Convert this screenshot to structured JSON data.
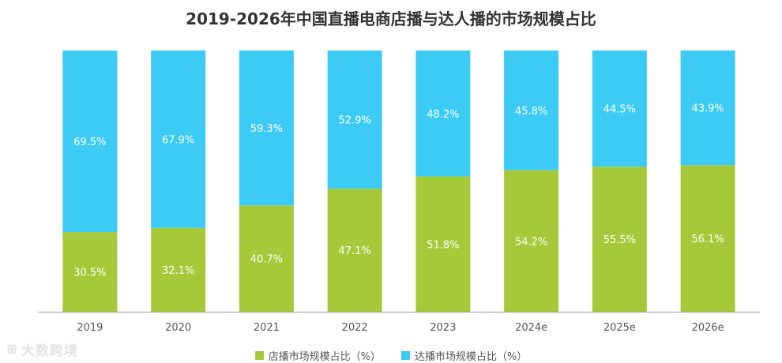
{
  "colors": {
    "store": "#a6c93a",
    "influencer": "#3ccbf4",
    "axis": "#999999",
    "tick_text": "#555555",
    "value_text": "#ffffff"
  },
  "watermark": {
    "icon": "logo-icon",
    "text": "大数跨境"
  },
  "chart_data": {
    "type": "bar",
    "stacked": true,
    "title": "2019-2026年中国直播电商店播与达人播的市场规模占比",
    "xlabel": "",
    "ylabel": "",
    "ylim": [
      0,
      100
    ],
    "categories": [
      "2019",
      "2020",
      "2021",
      "2022",
      "2023",
      "2024e",
      "2025e",
      "2026e"
    ],
    "series": [
      {
        "name": "店播市场规模占比（%）",
        "values": [
          30.5,
          32.1,
          40.7,
          47.1,
          51.8,
          54.2,
          55.5,
          56.1
        ],
        "labels": [
          "30.5%",
          "32.1%",
          "40.7%",
          "47.1%",
          "51.8%",
          "54.2%",
          "55.5%",
          "56.1%"
        ]
      },
      {
        "name": "达播市场规模占比（%）",
        "values": [
          69.5,
          67.9,
          59.3,
          52.9,
          48.2,
          45.8,
          44.5,
          43.9
        ],
        "labels": [
          "69.5%",
          "67.9%",
          "59.3%",
          "52.9%",
          "48.2%",
          "45.8%",
          "44.5%",
          "43.9%"
        ]
      }
    ],
    "legend": "bottom",
    "grid": false
  }
}
